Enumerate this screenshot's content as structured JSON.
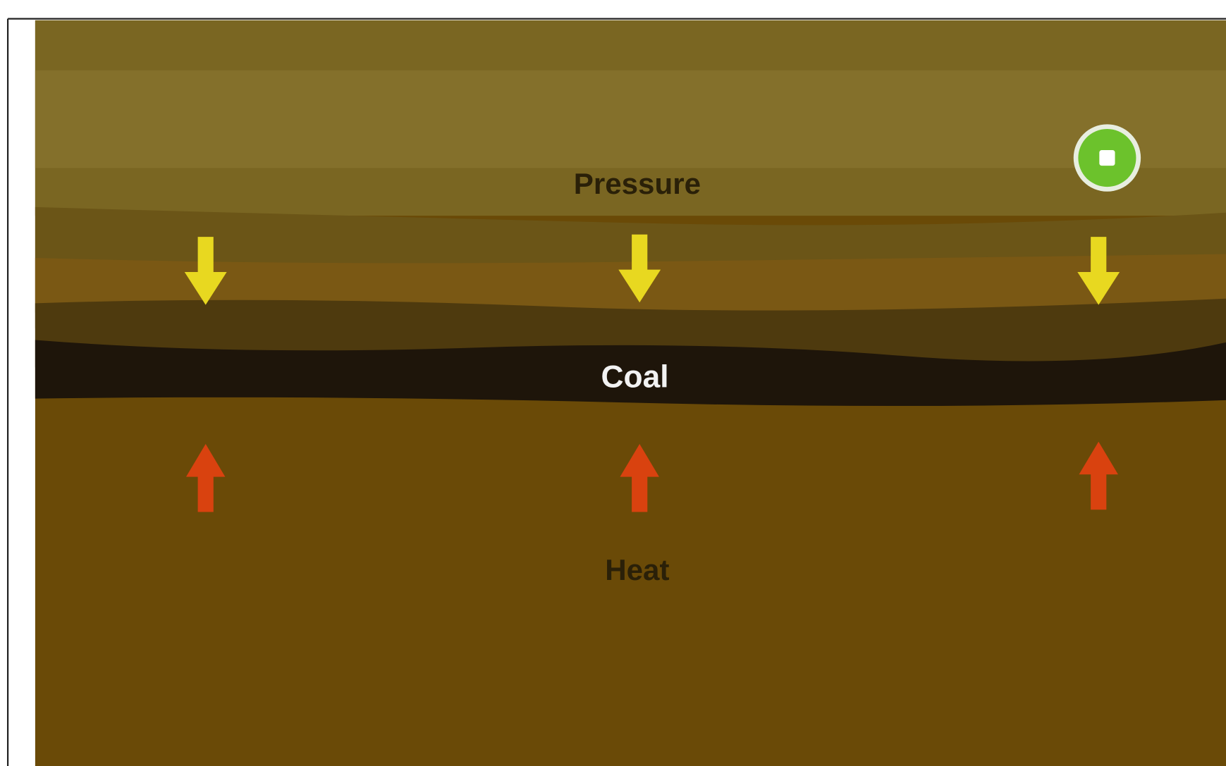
{
  "diagram": {
    "labels": {
      "pressure": "Pressure",
      "coal": "Coal",
      "heat": "Heat"
    }
  }
}
